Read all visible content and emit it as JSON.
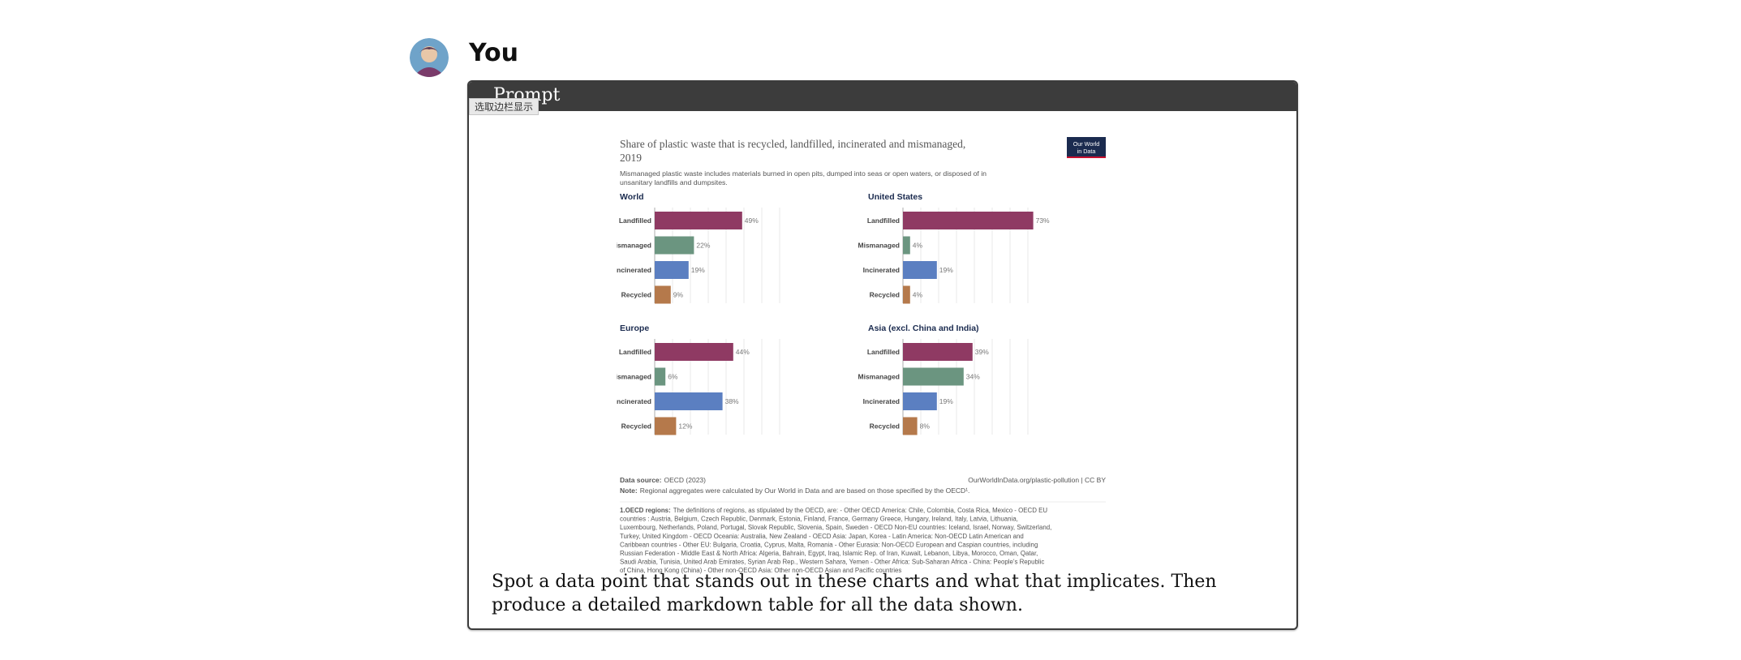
{
  "user": {
    "name": "You"
  },
  "prompt": {
    "title": "Prompt",
    "sidebar_toggle": "选取边栏显示",
    "text": "Spot a data point that stands out in these charts and what that implicates. Then produce a detailed markdown table for all the data shown."
  },
  "colors": {
    "Landfilled": "#8f3a63",
    "Mismanaged": "#6b9580",
    "Incinerated": "#5b7fc1",
    "Recycled": "#b5794b"
  },
  "chart_data": {
    "type": "bar",
    "title": "Share of plastic waste that is recycled, landfilled, incinerated and mismanaged, 2019",
    "subtitle": "Mismanaged plastic waste includes materials burned in open pits, dumped into seas or open waters, or disposed of in unsanitary landfills and dumpsites.",
    "logo": "Our World in Data",
    "orientation": "horizontal",
    "categories": [
      "Landfilled",
      "Mismanaged",
      "Incinerated",
      "Recycled"
    ],
    "panels": [
      {
        "name": "World",
        "values": [
          49,
          22,
          19,
          9
        ],
        "labels": [
          "49%",
          "22%",
          "19%",
          "9%"
        ]
      },
      {
        "name": "United States",
        "values": [
          73,
          4,
          19,
          4
        ],
        "labels": [
          "73%",
          "4%",
          "19%",
          "4%"
        ]
      },
      {
        "name": "Europe",
        "values": [
          44,
          6,
          38,
          12
        ],
        "labels": [
          "44%",
          "6%",
          "38%",
          "12%"
        ]
      },
      {
        "name": "Asia (excl. China and India)",
        "values": [
          39,
          34,
          19,
          8
        ],
        "labels": [
          "39%",
          "34%",
          "19%",
          "8%"
        ]
      }
    ],
    "xlim": [
      0,
      70
    ],
    "grid": true,
    "source_label": "Data source:",
    "source": "OECD (2023)",
    "url": "OurWorldInData.org/plastic-pollution | CC BY",
    "note_label": "Note:",
    "note": "Regional aggregates were calculated by Our World in Data and are based on those specified by the OECD¹.",
    "footnote_label": "1.OECD regions:",
    "footnote_lines": [
      "The definitions of regions, as stipulated by the OECD, are: - Other OECD America: Chile, Colombia, Costa Rica, Mexico - OECD EU",
      "countries : Austria, Belgium, Czech Republic, Denmark, Estonia, Finland, France, Germany Greece, Hungary, Ireland, Italy, Latvia, Lithuania,",
      "Luxembourg, Netherlands, Poland, Portugal, Slovak Republic, Slovenia, Spain, Sweden - OECD Non-EU countries: Iceland, Israel, Norway, Switzerland,",
      "Turkey, United Kingdom - OECD Oceania: Australia, New Zealand - OECD Asia: Japan, Korea - Latin America: Non-OECD Latin American and",
      "Caribbean countries - Other EU: Bulgaria, Croatia, Cyprus, Malta, Romania - Other Eurasia: Non-OECD European and Caspian countries, including",
      "Russian Federation - Middle East & North Africa: Algeria, Bahrain, Egypt, Iraq, Islamic Rep. of Iran, Kuwait, Lebanon, Libya, Morocco, Oman, Qatar,",
      "Saudi Arabia, Tunisia, United Arab Emirates, Syrian Arab Rep., Western Sahara, Yemen - Other Africa: Sub-Saharan Africa - China: People's Republic",
      "of China, Hong Kong (China) - Other non-OECD Asia: Other non-OECD Asian and Pacific countries"
    ]
  }
}
